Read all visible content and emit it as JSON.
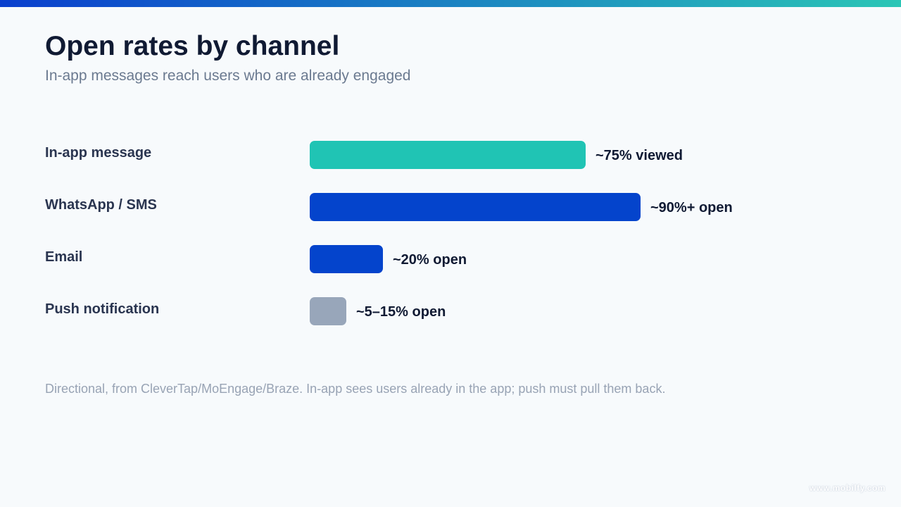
{
  "colors": {
    "gradient_start": "#0a3fce",
    "gradient_end": "#2bc6b6",
    "teal": "#20c4b4",
    "blue": "#0444cc",
    "gray": "#98a6ba"
  },
  "chart_data": {
    "type": "bar",
    "orientation": "horizontal",
    "title": "Open rates by channel",
    "subtitle": "In-app messages reach users who are already engaged",
    "categories": [
      "In-app message",
      "WhatsApp / SMS",
      "Email",
      "Push notification"
    ],
    "values": [
      75,
      90,
      20,
      10
    ],
    "value_labels": [
      "~75% viewed",
      "~90%+ open",
      "~20% open",
      "~5–15% open"
    ],
    "bar_colors": [
      "#20c4b4",
      "#0444cc",
      "#0444cc",
      "#98a6ba"
    ],
    "xlim": [
      0,
      100
    ],
    "grid": false,
    "legend": "none"
  },
  "footnote": "Directional, from CleverTap/MoEngage/Braze. In-app sees users already in the app; push must pull them back.",
  "watermark": "www.mobilfy.com"
}
